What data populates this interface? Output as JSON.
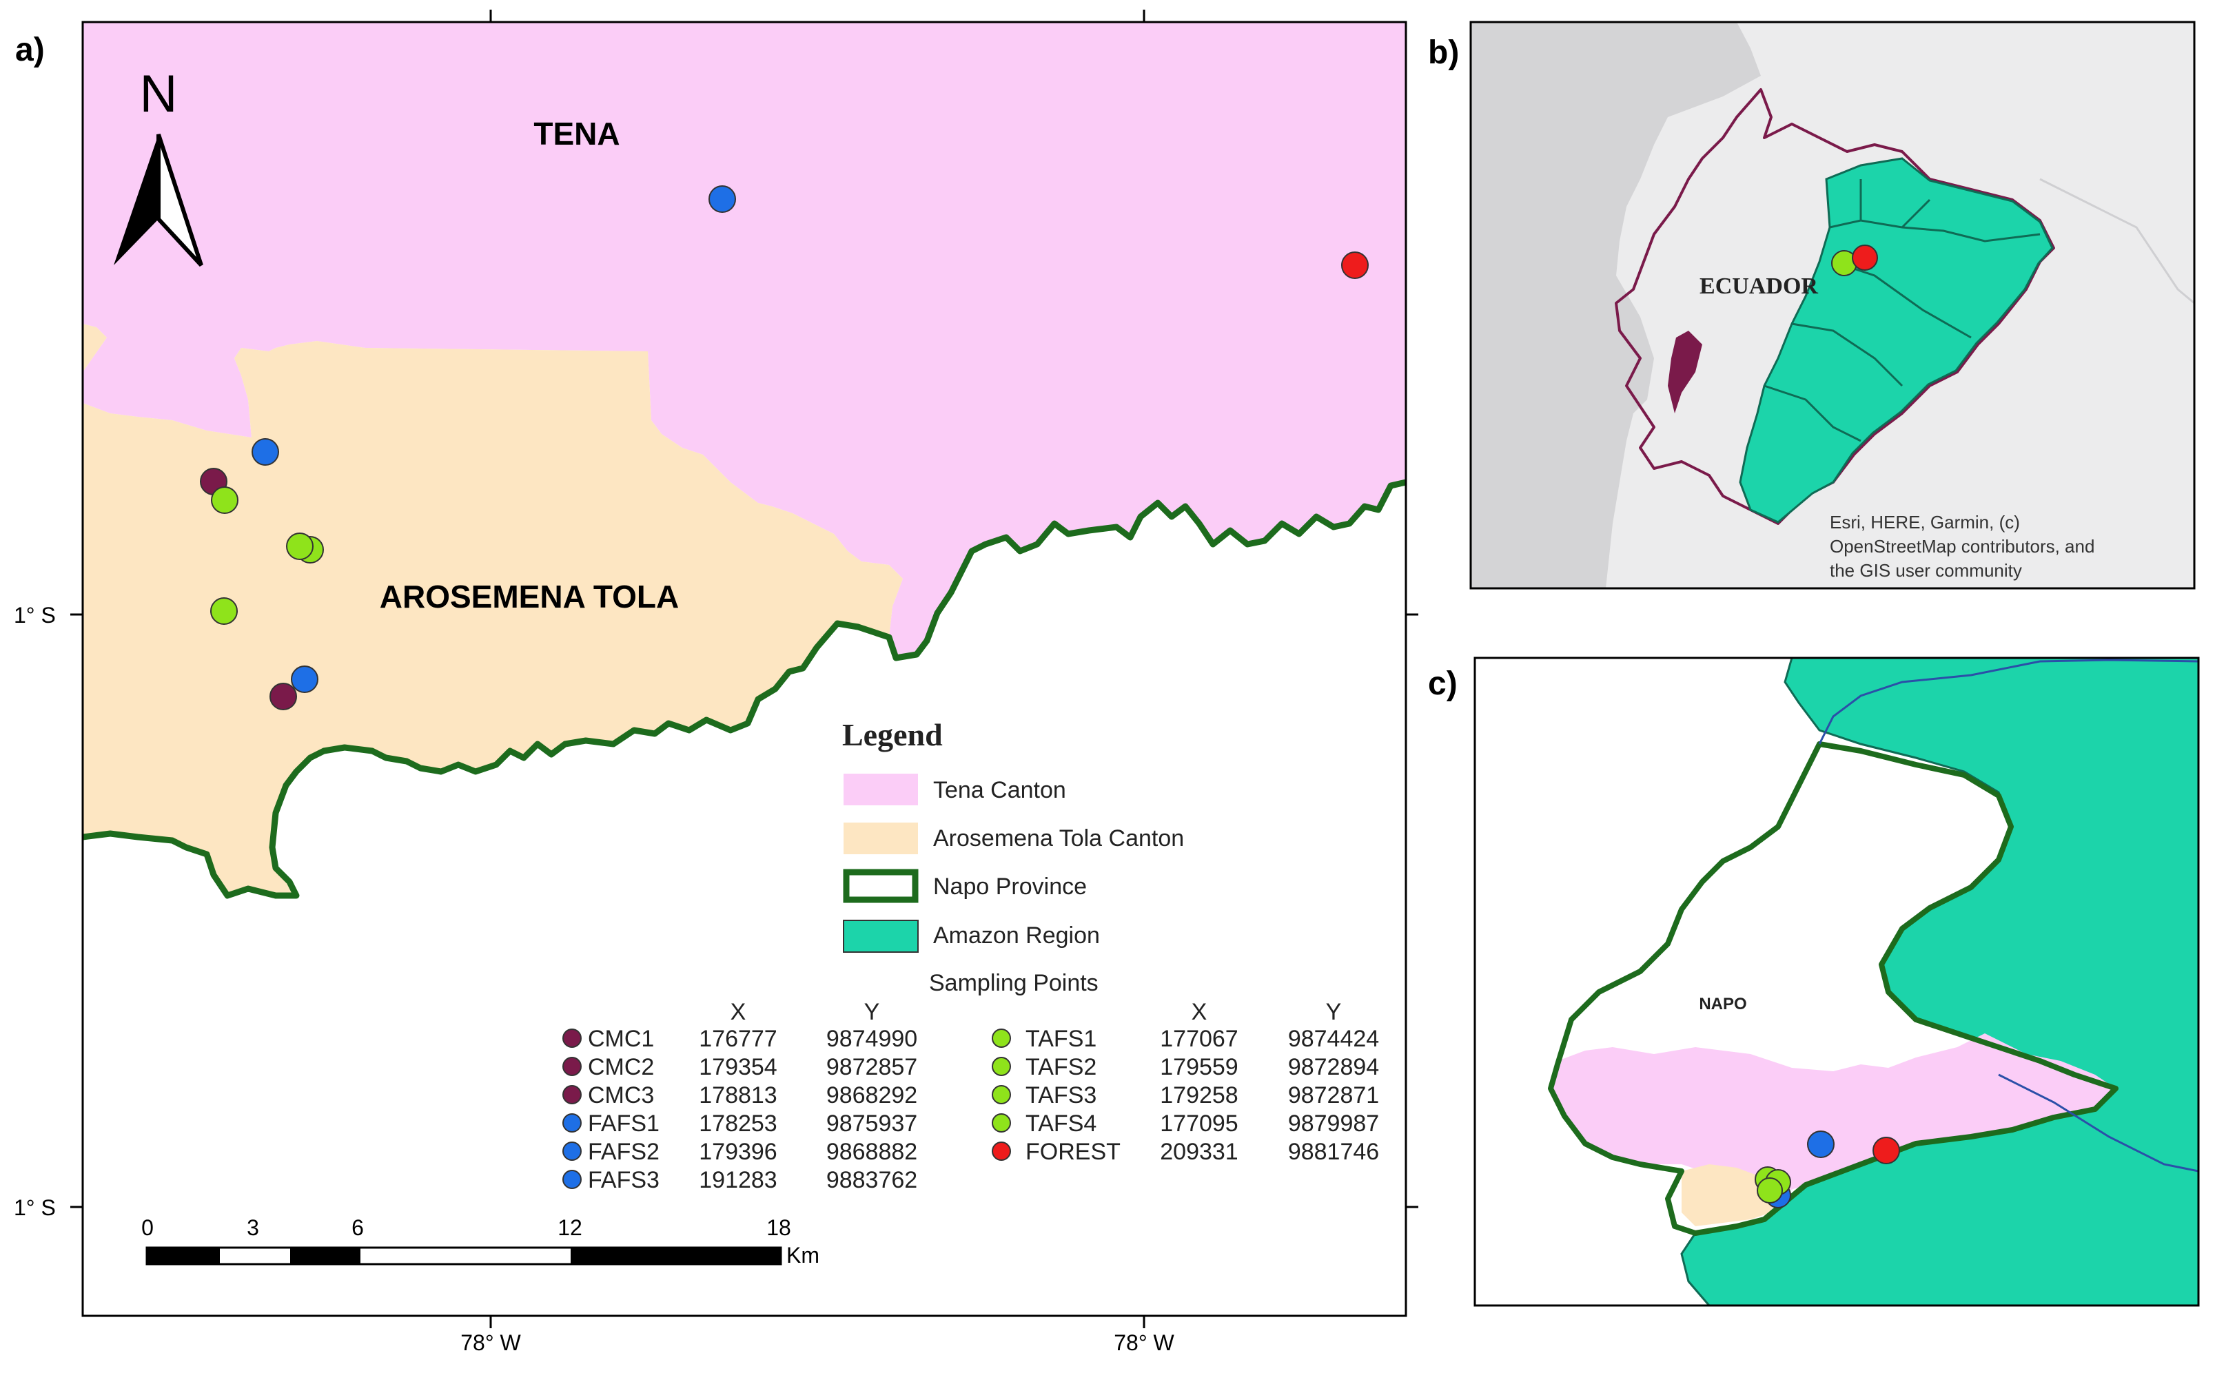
{
  "panels": {
    "a": {
      "letter": "a)"
    },
    "b": {
      "letter": "b)"
    },
    "c": {
      "letter": "c)"
    }
  },
  "map_a": {
    "labels": {
      "tena": "TENA",
      "arosemena": "AROSEMENA TOLA"
    },
    "north_arrow": "N",
    "coordinates": {
      "lat_left_top": "1° S",
      "lat_left_bottom": "1° S",
      "lon_bottom_left": "78° W",
      "lon_bottom_right": "78° W"
    },
    "scale_bar": {
      "ticks": [
        "0",
        "3",
        "6",
        "12",
        "18"
      ],
      "unit": "Km"
    },
    "legend": {
      "title": "Legend",
      "items": [
        {
          "label": "Tena Canton",
          "color": "#fbcdf7"
        },
        {
          "label": "Arosemena Tola Canton",
          "color": "#fde6c2"
        },
        {
          "label": "Napo Province",
          "color": "#1d6b1d"
        },
        {
          "label": "Amazon Region",
          "color": "#1cd4aa"
        }
      ],
      "sampling_title": "Sampling Points",
      "col_x": "X",
      "col_y": "Y",
      "points_left": [
        {
          "name": "CMC1",
          "x": "176777",
          "y": "9874990",
          "color": "#7a1a4a"
        },
        {
          "name": "CMC2",
          "x": "179354",
          "y": "9872857",
          "color": "#7a1a4a"
        },
        {
          "name": "CMC3",
          "x": "178813",
          "y": "9868292",
          "color": "#7a1a4a"
        },
        {
          "name": "FAFS1",
          "x": "178253",
          "y": "9875937",
          "color": "#1e6fe6"
        },
        {
          "name": "FAFS2",
          "x": "179396",
          "y": "9868882",
          "color": "#1e6fe6"
        },
        {
          "name": "FAFS3",
          "x": "191283",
          "y": "9883762",
          "color": "#1e6fe6"
        }
      ],
      "points_right": [
        {
          "name": "TAFS1",
          "x": "177067",
          "y": "9874424",
          "color": "#8fe31b"
        },
        {
          "name": "TAFS2",
          "x": "179559",
          "y": "9872894",
          "color": "#8fe31b"
        },
        {
          "name": "TAFS3",
          "x": "179258",
          "y": "9872871",
          "color": "#8fe31b"
        },
        {
          "name": "TAFS4",
          "x": "177095",
          "y": "9879987",
          "color": "#8fe31b"
        },
        {
          "name": "FOREST",
          "x": "209331",
          "y": "9881746",
          "color": "#ee1c1c"
        }
      ]
    }
  },
  "map_b": {
    "country_label": "ECUADOR",
    "credit": [
      "Esri, HERE, Garmin, (c)",
      "OpenStreetMap contributors, and",
      "the GIS user community"
    ]
  },
  "map_c": {
    "province_label": "NAPO"
  },
  "colors": {
    "tena": "#fbcdf7",
    "arosemena": "#fde6c2",
    "napo_border": "#1d6b1d",
    "amazon": "#1cd4aa",
    "ocean_gray": "#d4d4d6",
    "land_gray": "#ececed",
    "ecuador_border": "#7a1a4a"
  }
}
